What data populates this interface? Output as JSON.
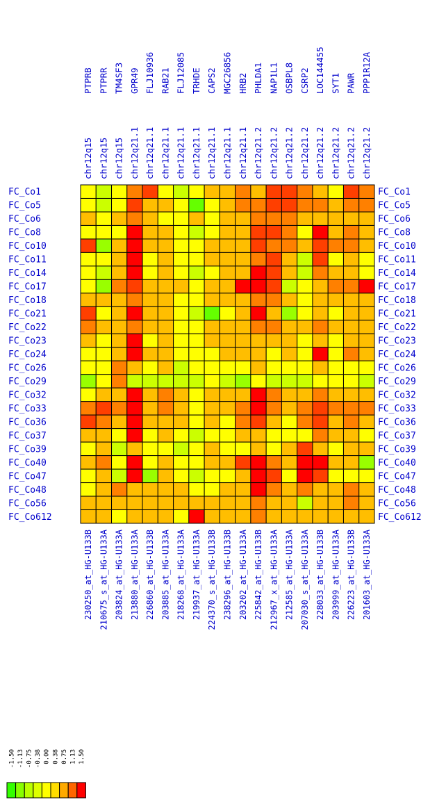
{
  "chart_data": {
    "type": "heatmap",
    "gene_symbols": [
      "PTPRB",
      "PTPRR",
      "TM4SF3",
      "GPR49",
      "FLJ10936",
      "RAB21",
      "FLJ12085",
      "TRHDE",
      "CAPS2",
      "MGC26856",
      "HRB2",
      "PHLDA1",
      "NAP1L1",
      "OSBPL8",
      "CSRP2",
      "LOC144455",
      "SYT1",
      "PAWR",
      "PPP1R12A"
    ],
    "chromosome_bands": [
      "chr12q15",
      "chr12q15",
      "chr12q15",
      "chr12q21.1",
      "chr12q21.1",
      "chr12q21.1",
      "chr12q21.1",
      "chr12q21.1",
      "chr12q21.1",
      "chr12q21.1",
      "chr12q21.1",
      "chr12q21.2",
      "chr12q21.2",
      "chr12q21.2",
      "chr12q21.2",
      "chr12q21.2",
      "chr12q21.2",
      "chr12q21.2",
      "chr12q21.2"
    ],
    "probes": [
      "230250_at_HG-U133B",
      "210675_s_at_HG-U133A",
      "203824_at_HG-U133A",
      "213880_at_HG-U133A",
      "226860_at_HG-U133B",
      "203885_at_HG-U133A",
      "218268_at_HG-U133A",
      "219937_at_HG-U133A",
      "224370_s_at_HG-U133B",
      "238296_at_HG-U133B",
      "203202_at_HG-U133A",
      "225842_at_HG-U133B",
      "212967_x_at_HG-U133A",
      "212585_at_HG-U133A",
      "207030_s_at_HG-U133A",
      "228033_at_HG-U133B",
      "203999_at_HG-U133A",
      "226223_at_HG-U133B",
      "201603_at_HG-U133A"
    ],
    "samples": [
      "FC_Co1",
      "FC_Co5",
      "FC_Co6",
      "FC_Co8",
      "FC_Co10",
      "FC_Co11",
      "FC_Co14",
      "FC_Co17",
      "FC_Co18",
      "FC_Co21",
      "FC_Co22",
      "FC_Co23",
      "FC_Co24",
      "FC_Co26",
      "FC_Co29",
      "FC_Co32",
      "FC_Co33",
      "FC_Co36",
      "FC_Co37",
      "FC_Co39",
      "FC_Co40",
      "FC_Co47",
      "FC_Co48",
      "FC_Co56",
      "FC_Co612"
    ],
    "values": [
      [
        0.0,
        -0.38,
        0.0,
        0.75,
        1.13,
        0.0,
        -0.38,
        0.0,
        0.38,
        0.38,
        0.75,
        0.38,
        1.13,
        1.13,
        0.75,
        0.38,
        0.0,
        1.13,
        0.75
      ],
      [
        0.0,
        -0.38,
        0.0,
        1.13,
        0.38,
        0.38,
        0.0,
        -1.13,
        0.0,
        0.38,
        0.75,
        0.75,
        1.13,
        1.13,
        0.75,
        0.75,
        0.38,
        0.75,
        0.75
      ],
      [
        0.38,
        0.0,
        0.38,
        0.75,
        0.38,
        0.0,
        0.0,
        0.38,
        0.0,
        0.38,
        0.38,
        0.75,
        0.75,
        0.75,
        0.38,
        0.38,
        0.38,
        0.38,
        0.38
      ],
      [
        0.0,
        0.0,
        0.0,
        1.5,
        0.38,
        0.38,
        0.0,
        -0.38,
        0.0,
        0.38,
        0.38,
        1.13,
        1.13,
        0.75,
        0.0,
        1.5,
        0.38,
        0.75,
        0.38
      ],
      [
        1.13,
        -0.75,
        0.38,
        1.5,
        0.38,
        0.38,
        0.0,
        0.0,
        0.38,
        0.38,
        0.38,
        1.13,
        0.75,
        0.75,
        0.38,
        1.13,
        0.75,
        0.75,
        0.38
      ],
      [
        0.0,
        0.0,
        0.38,
        1.5,
        0.0,
        0.38,
        0.0,
        0.0,
        0.38,
        0.38,
        0.38,
        0.75,
        1.13,
        0.38,
        -0.38,
        1.13,
        0.0,
        0.38,
        0.0
      ],
      [
        0.0,
        -0.38,
        0.38,
        1.5,
        0.0,
        0.38,
        0.0,
        -0.38,
        0.0,
        0.38,
        0.38,
        1.5,
        1.13,
        0.38,
        -0.38,
        0.75,
        0.38,
        0.38,
        0.0
      ],
      [
        0.0,
        -0.75,
        0.75,
        1.13,
        0.38,
        0.38,
        0.38,
        0.0,
        0.38,
        0.38,
        1.5,
        1.5,
        1.13,
        -0.38,
        0.0,
        0.38,
        0.75,
        0.75,
        1.5
      ],
      [
        0.38,
        0.38,
        0.38,
        0.75,
        0.38,
        0.38,
        0.0,
        0.0,
        0.38,
        0.38,
        0.38,
        0.75,
        0.75,
        0.38,
        0.0,
        0.38,
        0.38,
        0.38,
        0.38
      ],
      [
        1.13,
        0.0,
        0.38,
        1.5,
        0.38,
        0.38,
        0.0,
        -0.38,
        -1.13,
        0.0,
        0.38,
        1.5,
        0.38,
        -0.75,
        0.0,
        0.38,
        0.0,
        0.38,
        0.38
      ],
      [
        0.75,
        0.38,
        0.38,
        0.75,
        0.38,
        0.38,
        0.0,
        0.0,
        0.38,
        0.38,
        0.38,
        0.75,
        0.75,
        0.38,
        0.38,
        0.75,
        0.38,
        0.38,
        0.38
      ],
      [
        0.38,
        0.0,
        0.38,
        1.5,
        0.0,
        0.38,
        0.0,
        0.0,
        0.38,
        0.38,
        0.38,
        0.38,
        0.38,
        0.38,
        0.0,
        0.38,
        0.0,
        0.38,
        0.38
      ],
      [
        0.0,
        0.0,
        0.38,
        1.5,
        0.38,
        0.38,
        0.0,
        0.0,
        0.0,
        0.38,
        0.38,
        0.38,
        0.0,
        0.38,
        0.0,
        1.5,
        0.0,
        0.75,
        0.38
      ],
      [
        0.0,
        0.0,
        0.75,
        0.38,
        0.0,
        0.38,
        -0.38,
        0.0,
        0.0,
        0.0,
        0.0,
        0.38,
        0.0,
        0.0,
        0.0,
        0.38,
        0.0,
        0.0,
        0.0
      ],
      [
        -0.75,
        0.0,
        0.75,
        -0.38,
        -0.38,
        -0.38,
        -0.38,
        -0.38,
        0.0,
        -0.38,
        -0.75,
        0.0,
        -0.38,
        -0.38,
        -0.38,
        0.0,
        0.0,
        0.0,
        -0.38
      ],
      [
        0.0,
        0.38,
        0.38,
        1.5,
        0.38,
        0.75,
        0.38,
        0.0,
        0.38,
        0.38,
        0.38,
        1.5,
        0.75,
        0.38,
        0.38,
        0.75,
        0.38,
        0.38,
        0.38
      ],
      [
        0.75,
        1.13,
        0.75,
        1.5,
        0.38,
        0.75,
        0.38,
        0.0,
        0.38,
        0.38,
        0.75,
        1.5,
        0.75,
        0.38,
        0.75,
        1.13,
        0.75,
        0.75,
        0.75
      ],
      [
        1.13,
        0.75,
        0.38,
        1.5,
        0.38,
        0.38,
        0.38,
        0.0,
        0.38,
        0.0,
        0.75,
        1.13,
        0.38,
        0.0,
        0.75,
        1.13,
        0.38,
        0.75,
        0.38
      ],
      [
        0.38,
        0.38,
        0.0,
        1.5,
        0.0,
        0.38,
        0.0,
        -0.38,
        0.0,
        0.0,
        0.38,
        0.38,
        0.0,
        0.0,
        0.0,
        0.75,
        0.38,
        0.38,
        0.0
      ],
      [
        0.0,
        0.38,
        -0.38,
        0.38,
        0.0,
        0.0,
        -0.38,
        0.0,
        0.38,
        0.0,
        0.0,
        0.38,
        0.0,
        0.38,
        1.13,
        0.38,
        0.0,
        0.38,
        0.38
      ],
      [
        0.38,
        0.75,
        0.0,
        1.5,
        0.0,
        0.38,
        0.0,
        0.0,
        0.38,
        0.38,
        1.13,
        1.5,
        0.75,
        0.38,
        1.5,
        1.5,
        0.38,
        0.38,
        -0.75
      ],
      [
        0.0,
        0.38,
        -0.38,
        1.5,
        -0.75,
        0.38,
        0.0,
        -0.38,
        0.0,
        0.0,
        0.38,
        1.5,
        1.13,
        0.0,
        1.5,
        1.13,
        0.0,
        0.0,
        0.0
      ],
      [
        0.0,
        0.38,
        0.75,
        0.38,
        0.38,
        0.38,
        0.38,
        0.0,
        0.0,
        0.38,
        0.38,
        1.5,
        0.75,
        0.38,
        0.75,
        0.38,
        0.38,
        0.75,
        0.38
      ],
      [
        0.38,
        0.38,
        0.38,
        0.38,
        0.38,
        0.38,
        0.38,
        0.38,
        0.38,
        0.38,
        0.38,
        0.75,
        0.38,
        0.38,
        -0.38,
        0.38,
        0.38,
        0.75,
        0.38
      ],
      [
        0.38,
        0.38,
        0.0,
        0.38,
        0.38,
        0.38,
        0.0,
        1.5,
        0.38,
        0.38,
        0.38,
        0.75,
        0.38,
        0.38,
        0.38,
        0.38,
        0.38,
        0.38,
        0.38
      ]
    ],
    "legend": {
      "labels": [
        "-1.50",
        "-1.13",
        "-0.75",
        "-0.38",
        "0.00",
        "0.38",
        "0.75",
        "1.13",
        "1.50"
      ],
      "colors": [
        "#33ff00",
        "#88ff00",
        "#bbff00",
        "#ddff00",
        "#ffff00",
        "#ffdd00",
        "#ffaa00",
        "#ff6600",
        "#ff0000"
      ]
    },
    "color_scale": {
      "min": -1.5,
      "max": 1.5,
      "low": "#33ff00",
      "mid": "#ffff00",
      "high": "#ff0000"
    },
    "grid": true,
    "legend_position": "bottom-left"
  }
}
